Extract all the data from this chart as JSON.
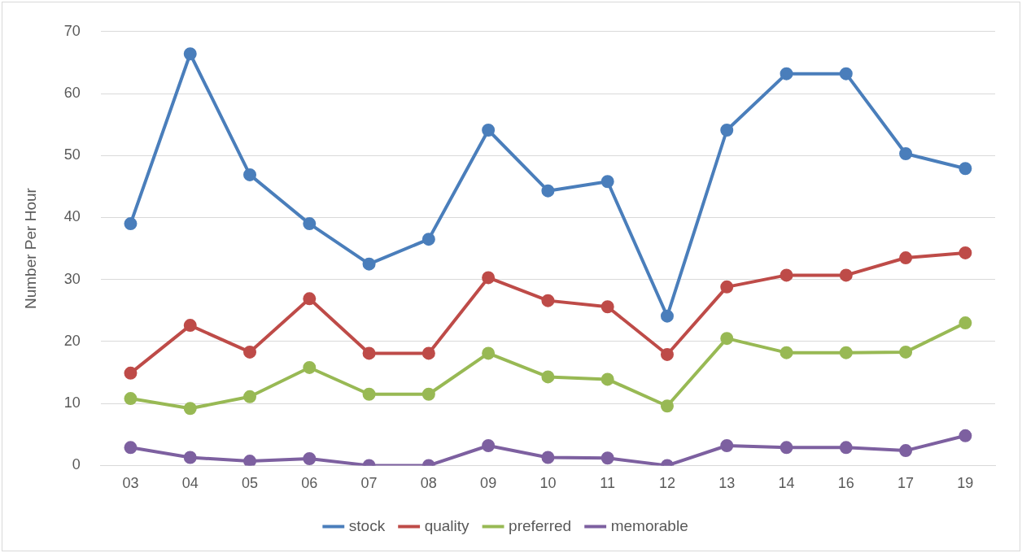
{
  "chart_data": {
    "type": "line",
    "ylabel": "Number Per Hour",
    "categories": [
      "03",
      "04",
      "05",
      "06",
      "07",
      "08",
      "09",
      "10",
      "11",
      "12",
      "13",
      "14",
      "16",
      "17",
      "19"
    ],
    "series": [
      {
        "name": "stock",
        "color": "#4a7ebb",
        "values": [
          39,
          66.4,
          46.9,
          39,
          32.5,
          36.5,
          54.1,
          44.3,
          45.8,
          24.1,
          54.1,
          63.2,
          63.2,
          50.3,
          47.9
        ]
      },
      {
        "name": "quality",
        "color": "#be4b48",
        "values": [
          14.9,
          22.6,
          18.3,
          26.9,
          18.1,
          18.1,
          30.3,
          26.6,
          25.6,
          17.9,
          28.8,
          30.7,
          30.7,
          33.5,
          34.3
        ]
      },
      {
        "name": "preferred",
        "color": "#98b954",
        "values": [
          10.8,
          9.2,
          11.1,
          15.8,
          11.5,
          11.5,
          18.1,
          14.3,
          13.9,
          9.6,
          20.5,
          18.2,
          18.2,
          18.3,
          23
        ]
      },
      {
        "name": "memorable",
        "color": "#7d60a0",
        "values": [
          2.9,
          1.3,
          0.7,
          1.1,
          0,
          0,
          3.2,
          1.3,
          1.2,
          0,
          3.2,
          2.9,
          2.9,
          2.4,
          4.8
        ]
      }
    ],
    "ylim": [
      0,
      70
    ],
    "yticks": [
      0,
      10,
      20,
      30,
      40,
      50,
      60,
      70
    ],
    "grid": "y",
    "legend": "bottom",
    "marker": "circle",
    "line_style": "solid"
  }
}
